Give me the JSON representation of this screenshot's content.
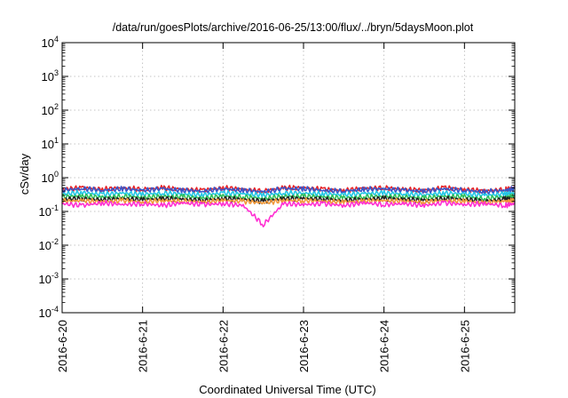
{
  "chart_data": {
    "type": "line",
    "title": "/data/run/goesPlots/archive/2016-06-25/13:00/flux/../bryn/5daysMoon.plot",
    "xlabel": "Coordinated Universal Time (UTC)",
    "ylabel": "cSv/day",
    "yscale": "log",
    "ylim": [
      0.0001,
      10000
    ],
    "y_ticks": [
      {
        "value": 0.0001,
        "base": "10",
        "exp": "-4"
      },
      {
        "value": 0.001,
        "base": "10",
        "exp": "-3"
      },
      {
        "value": 0.01,
        "base": "10",
        "exp": "-2"
      },
      {
        "value": 0.1,
        "base": "10",
        "exp": "-1"
      },
      {
        "value": 1,
        "base": "10",
        "exp": "0"
      },
      {
        "value": 10,
        "base": "10",
        "exp": "1"
      },
      {
        "value": 100,
        "base": "10",
        "exp": "2"
      },
      {
        "value": 1000,
        "base": "10",
        "exp": "3"
      },
      {
        "value": 10000,
        "base": "10",
        "exp": "4"
      }
    ],
    "xlim": [
      "2016-06-20T00:00",
      "2016-06-25T15:00"
    ],
    "x_ticks": [
      {
        "value": "2016-06-20T00:00",
        "label": "2016-6-20"
      },
      {
        "value": "2016-06-21T00:00",
        "label": "2016-6-21"
      },
      {
        "value": "2016-06-22T00:00",
        "label": "2016-6-22"
      },
      {
        "value": "2016-06-23T00:00",
        "label": "2016-6-23"
      },
      {
        "value": "2016-06-24T00:00",
        "label": "2016-6-24"
      },
      {
        "value": "2016-06-25T00:00",
        "label": "2016-6-25"
      }
    ],
    "grid": true,
    "x": [
      "2016-06-20T00:00",
      "2016-06-20T06:00",
      "2016-06-20T12:00",
      "2016-06-20T18:00",
      "2016-06-21T00:00",
      "2016-06-21T06:00",
      "2016-06-21T12:00",
      "2016-06-21T18:00",
      "2016-06-22T00:00",
      "2016-06-22T06:00",
      "2016-06-22T12:00",
      "2016-06-22T18:00",
      "2016-06-23T00:00",
      "2016-06-23T06:00",
      "2016-06-23T12:00",
      "2016-06-23T18:00",
      "2016-06-24T00:00",
      "2016-06-24T06:00",
      "2016-06-24T12:00",
      "2016-06-24T18:00",
      "2016-06-25T00:00",
      "2016-06-25T06:00",
      "2016-06-25T12:00",
      "2016-06-25T15:00"
    ],
    "series": [
      {
        "color": "#e8262a",
        "values": [
          0.45,
          0.5,
          0.45,
          0.5,
          0.45,
          0.5,
          0.45,
          0.42,
          0.5,
          0.45,
          0.4,
          0.5,
          0.5,
          0.45,
          0.42,
          0.48,
          0.5,
          0.45,
          0.42,
          0.5,
          0.45,
          0.4,
          0.45,
          0.5
        ]
      },
      {
        "color": "#3a56c8",
        "values": [
          0.42,
          0.48,
          0.42,
          0.47,
          0.42,
          0.47,
          0.42,
          0.4,
          0.47,
          0.42,
          0.38,
          0.47,
          0.47,
          0.42,
          0.4,
          0.45,
          0.47,
          0.42,
          0.4,
          0.47,
          0.42,
          0.38,
          0.42,
          0.47
        ]
      },
      {
        "color": "#22c6e6",
        "values": [
          0.33,
          0.36,
          0.32,
          0.35,
          0.32,
          0.35,
          0.33,
          0.31,
          0.35,
          0.33,
          0.3,
          0.35,
          0.35,
          0.33,
          0.31,
          0.34,
          0.35,
          0.33,
          0.31,
          0.35,
          0.33,
          0.3,
          0.33,
          0.35
        ]
      },
      {
        "color": "#2fbf5a",
        "values": [
          0.27,
          0.29,
          0.26,
          0.28,
          0.26,
          0.28,
          0.27,
          0.25,
          0.28,
          0.27,
          0.24,
          0.28,
          0.28,
          0.27,
          0.25,
          0.27,
          0.28,
          0.27,
          0.25,
          0.28,
          0.27,
          0.24,
          0.27,
          0.28
        ]
      },
      {
        "color": "#222222",
        "values": [
          0.23,
          0.24,
          0.22,
          0.24,
          0.22,
          0.24,
          0.23,
          0.21,
          0.24,
          0.23,
          0.2,
          0.24,
          0.24,
          0.23,
          0.21,
          0.23,
          0.24,
          0.23,
          0.21,
          0.24,
          0.23,
          0.2,
          0.23,
          0.24
        ]
      },
      {
        "color": "#f29a3a",
        "values": [
          0.2,
          0.21,
          0.19,
          0.21,
          0.19,
          0.21,
          0.2,
          0.19,
          0.21,
          0.2,
          0.18,
          0.21,
          0.21,
          0.2,
          0.19,
          0.2,
          0.21,
          0.2,
          0.19,
          0.21,
          0.2,
          0.18,
          0.2,
          0.21
        ]
      },
      {
        "color": "#ff2fd2",
        "values": [
          0.17,
          0.15,
          0.18,
          0.16,
          0.17,
          0.15,
          0.18,
          0.16,
          0.17,
          0.15,
          0.04,
          0.17,
          0.16,
          0.17,
          0.15,
          0.18,
          0.16,
          0.17,
          0.15,
          0.18,
          0.16,
          0.17,
          0.15,
          0.17
        ]
      }
    ]
  }
}
